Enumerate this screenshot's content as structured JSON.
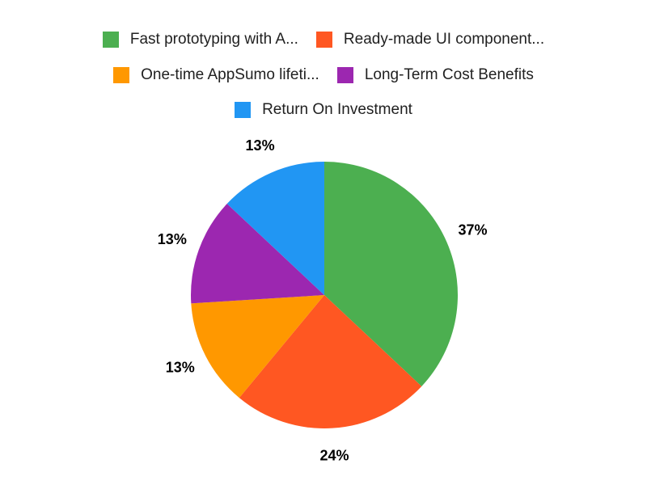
{
  "chart_data": {
    "type": "pie",
    "title": "",
    "categories": [
      "Fast prototyping with A...",
      "Ready-made UI component...",
      "One-time AppSumo lifeti...",
      "Long-Term Cost Benefits",
      "Return On Investment"
    ],
    "values": [
      37,
      24,
      13,
      13,
      13
    ],
    "labels": [
      "37%",
      "24%",
      "13%",
      "13%",
      "13%"
    ],
    "colors": [
      "#4CAF50",
      "#FF5722",
      "#FF9800",
      "#9C27B0",
      "#2196F3"
    ],
    "legend_position": "top",
    "start_angle_deg": 0,
    "direction": "clockwise"
  },
  "legend": {
    "items": [
      {
        "label": "Fast prototyping with A...",
        "color": "#4CAF50"
      },
      {
        "label": "Ready-made UI component...",
        "color": "#FF5722"
      },
      {
        "label": "One-time AppSumo lifeti...",
        "color": "#FF9800"
      },
      {
        "label": "Long-Term Cost Benefits",
        "color": "#9C27B0"
      },
      {
        "label": "Return On Investment",
        "color": "#2196F3"
      }
    ]
  }
}
